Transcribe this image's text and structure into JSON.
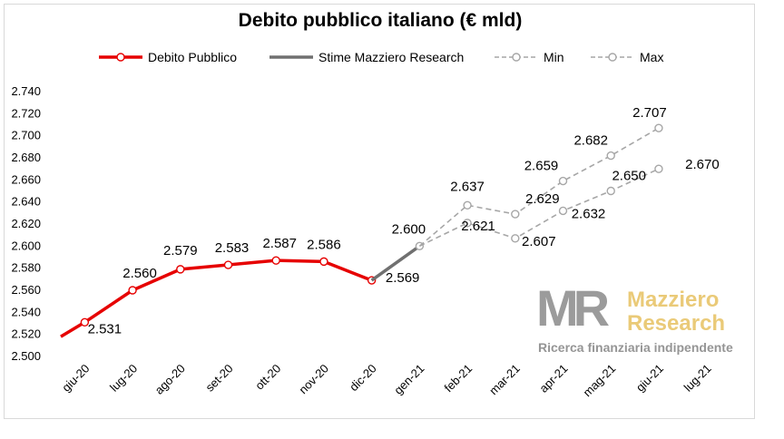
{
  "chart_data": {
    "type": "line",
    "title": "Debito pubblico italiano (€ mld)",
    "categories": [
      "giu-20",
      "lug-20",
      "ago-20",
      "set-20",
      "ott-20",
      "nov-20",
      "dic-20",
      "gen-21",
      "feb-21",
      "mar-21",
      "apr-21",
      "mag-21",
      "giu-21",
      "lug-21"
    ],
    "ylim": [
      2500,
      2740
    ],
    "yticks": [
      2500,
      2520,
      2540,
      2560,
      2580,
      2600,
      2620,
      2640,
      2660,
      2680,
      2700,
      2720,
      2740
    ],
    "ytick_labels": [
      "2.500",
      "2.520",
      "2.540",
      "2.560",
      "2.580",
      "2.600",
      "2.620",
      "2.640",
      "2.660",
      "2.680",
      "2.700",
      "2.720",
      "2.740"
    ],
    "grid": false,
    "legend_position": "top",
    "series": [
      {
        "name": "Debito Pubblico",
        "color": "#e60000",
        "style": "solid",
        "x": [
          "giu-20",
          "lug-20",
          "ago-20",
          "set-20",
          "ott-20",
          "nov-20",
          "dic-20"
        ],
        "values": [
          2531,
          2560,
          2579,
          2583,
          2587,
          2586,
          2569
        ],
        "labels": [
          "2.531",
          "2.560",
          "2.579",
          "2.583",
          "2.587",
          "2.586",
          "2.569"
        ],
        "start_value": 2518
      },
      {
        "name": "Stime Mazziero Research",
        "color": "#707070",
        "style": "solid",
        "x": [
          "dic-20",
          "gen-21"
        ],
        "values": [
          2569,
          2600
        ],
        "labels": [
          "",
          "2.600"
        ]
      },
      {
        "name": "Min",
        "color": "#a6a6a6",
        "style": "dashed",
        "x": [
          "gen-21",
          "feb-21",
          "mar-21",
          "apr-21",
          "mag-21",
          "giu-21"
        ],
        "values": [
          2600,
          2621,
          2607,
          2632,
          2650,
          2670
        ],
        "labels": [
          "",
          "2.621",
          "2.607",
          "2.632",
          "2.650",
          "2.670"
        ]
      },
      {
        "name": "Max",
        "color": "#a6a6a6",
        "style": "dashed",
        "x": [
          "gen-21",
          "feb-21",
          "mar-21",
          "apr-21",
          "mag-21",
          "giu-21"
        ],
        "values": [
          2600,
          2637,
          2629,
          2659,
          2682,
          2707
        ],
        "labels": [
          "",
          "2.637",
          "2.629",
          "2.659",
          "2.682",
          "2.707"
        ]
      }
    ]
  },
  "watermark": {
    "letters": "MR",
    "name_line1": "Mazziero",
    "name_line2": "Research",
    "tagline": "Ricerca finanziaria indipendente",
    "gray": "#8a8a8a",
    "gold": "#e8c56a"
  }
}
